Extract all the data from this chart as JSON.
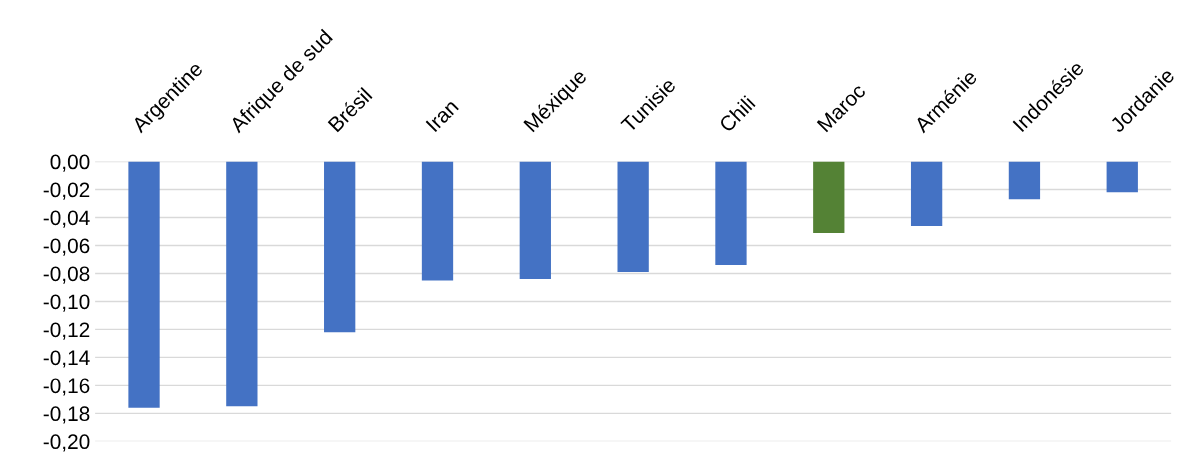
{
  "chart_data": {
    "type": "bar",
    "categories": [
      "Argentine",
      "Afrique de sud",
      "Brésil",
      "Iran",
      "Méxique",
      "Tunisie",
      "Chili",
      "Maroc",
      "Arménie",
      "Indonésie",
      "Jordanie"
    ],
    "values": [
      -0.176,
      -0.175,
      -0.122,
      -0.085,
      -0.084,
      -0.079,
      -0.074,
      -0.051,
      -0.046,
      -0.027,
      -0.022
    ],
    "colors": [
      "#4472c4",
      "#4472c4",
      "#4472c4",
      "#4472c4",
      "#4472c4",
      "#4472c4",
      "#4472c4",
      "#548235",
      "#4472c4",
      "#4472c4",
      "#4472c4"
    ],
    "ylim": [
      -0.2,
      0
    ],
    "yticks": [
      {
        "value": 0,
        "label": "0,00"
      },
      {
        "value": -0.02,
        "label": "-0,02"
      },
      {
        "value": -0.04,
        "label": "-0,04"
      },
      {
        "value": -0.06,
        "label": "-0,06"
      },
      {
        "value": -0.08,
        "label": "-0,08"
      },
      {
        "value": -0.1,
        "label": "-0,10"
      },
      {
        "value": -0.12,
        "label": "-0,12"
      },
      {
        "value": -0.14,
        "label": "-0,14"
      },
      {
        "value": -0.16,
        "label": "-0,16"
      },
      {
        "value": -0.18,
        "label": "-0,18"
      },
      {
        "value": -0.2,
        "label": "-0,20"
      }
    ],
    "grid": "y"
  }
}
